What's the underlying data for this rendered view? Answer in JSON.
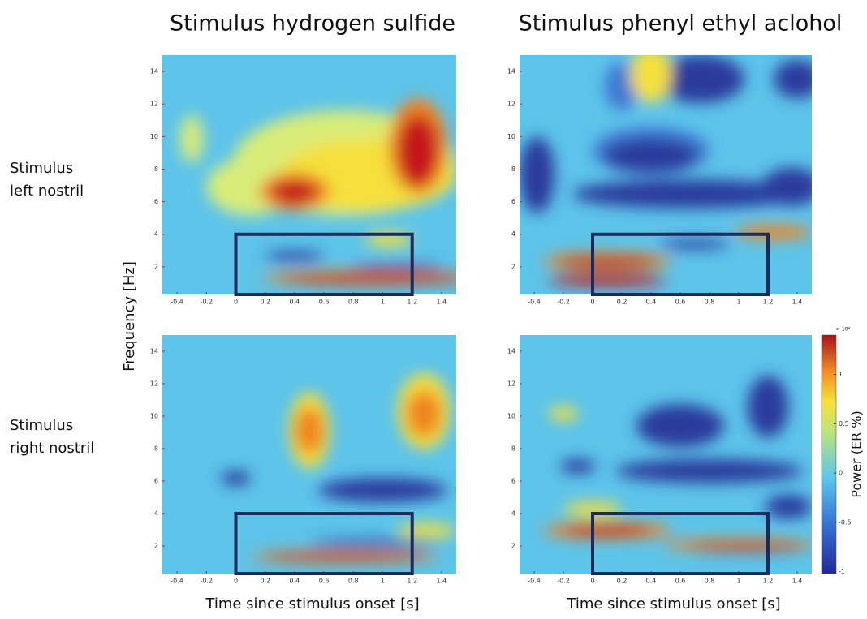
{
  "figure": {
    "column_titles": [
      "Stimulus hydrogen sulfide",
      "Stimulus phenyl ethyl aclohol"
    ],
    "row_labels": [
      [
        "Stimulus",
        "left nostril"
      ],
      [
        "Stimulus",
        "right nostril"
      ]
    ],
    "y_label": "Frequency [Hz]",
    "x_label": "Time since stimulus onset [s]",
    "colorbar": {
      "label": "Power (ER %)",
      "exponent_label": "× 10⁴",
      "lim": [
        -1.02,
        1.4
      ],
      "ticks": [
        -1,
        -0.5,
        0,
        0.5,
        1
      ]
    }
  },
  "chart_data": [
    {
      "type": "heatmap",
      "xlim": [
        -0.5,
        1.5
      ],
      "xticks": [
        -0.4,
        -0.2,
        0,
        0.2,
        0.4,
        0.6,
        0.8,
        1,
        1.2,
        1.4
      ],
      "ylim": [
        0.3,
        15
      ],
      "yticks": [
        2,
        4,
        6,
        8,
        10,
        12,
        14
      ],
      "highlight": {
        "x": [
          0,
          1.2
        ],
        "y": [
          0.3,
          4
        ]
      }
    },
    {
      "type": "heatmap",
      "xlim": [
        -0.5,
        1.5
      ],
      "xticks": [
        -0.4,
        -0.2,
        0,
        0.2,
        0.4,
        0.6,
        0.8,
        1,
        1.2,
        1.4
      ],
      "ylim": [
        0.3,
        15
      ],
      "yticks": [
        2,
        4,
        6,
        8,
        10,
        12,
        14
      ],
      "highlight": {
        "x": [
          0,
          1.2
        ],
        "y": [
          0.3,
          4
        ]
      }
    },
    {
      "type": "heatmap",
      "xlim": [
        -0.5,
        1.5
      ],
      "xticks": [
        -0.4,
        -0.2,
        0,
        0.2,
        0.4,
        0.6,
        0.8,
        1,
        1.2,
        1.4
      ],
      "ylim": [
        0.3,
        15
      ],
      "yticks": [
        2,
        4,
        6,
        8,
        10,
        12,
        14
      ],
      "highlight": {
        "x": [
          0,
          1.2
        ],
        "y": [
          0.3,
          4
        ]
      }
    },
    {
      "type": "heatmap",
      "xlim": [
        -0.5,
        1.5
      ],
      "xticks": [
        -0.4,
        -0.2,
        0,
        0.2,
        0.4,
        0.6,
        0.8,
        1,
        1.2,
        1.4
      ],
      "ylim": [
        0.3,
        15
      ],
      "yticks": [
        2,
        4,
        6,
        8,
        10,
        12,
        14
      ],
      "highlight": {
        "x": [
          0,
          1.2
        ],
        "y": [
          0.3,
          4
        ]
      }
    }
  ]
}
